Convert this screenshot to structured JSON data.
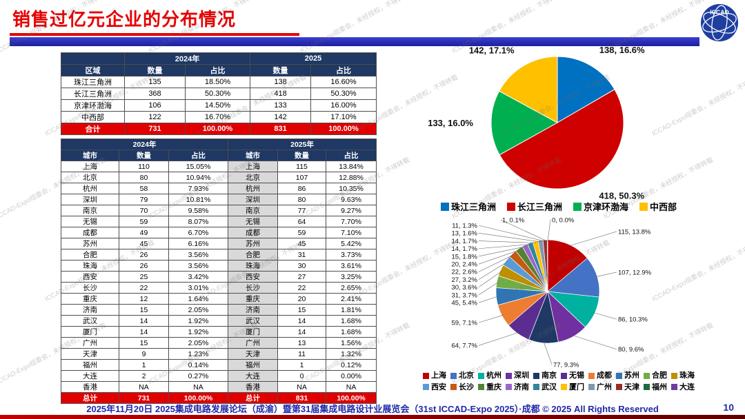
{
  "slide": {
    "title": "销售过亿元企业的分布情况",
    "footer": "2025年11月20日 2025集成电路发展论坛（成渝）暨第31届集成电路设计业展览会（31st ICCAD-Expo 2025）·成都 © 2025 All Rights Reserved",
    "page_number": "10",
    "watermark": "ICCAD-Expo组委会，未经授权，不得转载",
    "logo": "ICCAD",
    "accent_red": "#E60000",
    "accent_blue": "#2029A8"
  },
  "region_table": {
    "year_headers": [
      "2024年",
      "2025"
    ],
    "row_header": "区域",
    "sub_headers": [
      "数量",
      "占比",
      "数量",
      "占比"
    ],
    "rows": [
      [
        "珠江三角洲",
        "135",
        "18.50%",
        "138",
        "16.60%"
      ],
      [
        "长江三角洲",
        "368",
        "50.30%",
        "418",
        "50.30%"
      ],
      [
        "京津环渤海",
        "106",
        "14.50%",
        "133",
        "16.00%"
      ],
      [
        "中西部",
        "122",
        "16.70%",
        "142",
        "17.10%"
      ]
    ],
    "total_row": [
      "合计",
      "731",
      "100.00%",
      "831",
      "100.00%"
    ]
  },
  "city_table": {
    "year_headers": [
      "2024年",
      "2025年"
    ],
    "sub_headers": [
      "城市",
      "数量",
      "占比",
      "城市",
      "数量",
      "占比"
    ],
    "rows": [
      [
        "上海",
        "110",
        "15.05%",
        "上海",
        "115",
        "13.84%"
      ],
      [
        "北京",
        "80",
        "10.94%",
        "北京",
        "107",
        "12.88%"
      ],
      [
        "杭州",
        "58",
        "7.93%",
        "杭州",
        "86",
        "10.35%"
      ],
      [
        "深圳",
        "79",
        "10.81%",
        "深圳",
        "80",
        "9.63%"
      ],
      [
        "南京",
        "70",
        "9.58%",
        "南京",
        "77",
        "9.27%"
      ],
      [
        "无锡",
        "59",
        "8.07%",
        "无锡",
        "64",
        "7.70%"
      ],
      [
        "成都",
        "49",
        "6.70%",
        "成都",
        "59",
        "7.10%"
      ],
      [
        "苏州",
        "45",
        "6.16%",
        "苏州",
        "45",
        "5.42%"
      ],
      [
        "合肥",
        "26",
        "3.56%",
        "合肥",
        "31",
        "3.73%"
      ],
      [
        "珠海",
        "26",
        "3.56%",
        "珠海",
        "30",
        "3.61%"
      ],
      [
        "西安",
        "25",
        "3.42%",
        "西安",
        "27",
        "3.25%"
      ],
      [
        "长沙",
        "22",
        "3.01%",
        "长沙",
        "22",
        "2.65%"
      ],
      [
        "重庆",
        "12",
        "1.64%",
        "重庆",
        "20",
        "2.41%"
      ],
      [
        "济南",
        "15",
        "2.05%",
        "济南",
        "15",
        "1.81%"
      ],
      [
        "武汉",
        "14",
        "1.92%",
        "武汉",
        "14",
        "1.68%"
      ],
      [
        "厦门",
        "14",
        "1.92%",
        "厦门",
        "14",
        "1.68%"
      ],
      [
        "广州",
        "15",
        "2.05%",
        "广州",
        "13",
        "1.56%"
      ],
      [
        "天津",
        "9",
        "1.23%",
        "天津",
        "11",
        "1.32%"
      ],
      [
        "福州",
        "1",
        "0.14%",
        "福州",
        "1",
        "0.12%"
      ],
      [
        "大连",
        "2",
        "0.27%",
        "大连",
        "0",
        "0.00%"
      ],
      [
        "香港",
        "NA",
        "NA",
        "香港",
        "NA",
        "NA"
      ]
    ],
    "total_row": [
      "总计",
      "731",
      "100.00%",
      "总计",
      "831",
      "100.00%"
    ]
  },
  "chart_data": [
    {
      "type": "pie",
      "name": "regions-2025",
      "title": "",
      "categories": [
        "珠江三角洲",
        "长江三角洲",
        "京津环渤海",
        "中西部"
      ],
      "values": [
        138,
        418,
        133,
        142
      ],
      "percent": [
        16.6,
        50.3,
        16.0,
        17.1
      ],
      "labels": [
        "138, 16.6%",
        "418, 50.3%",
        "133, 16.0%",
        "142, 17.1%"
      ],
      "colors": [
        "#0070C0",
        "#CE0000",
        "#00B050",
        "#FFC000"
      ],
      "legend_position": "bottom",
      "start_angle_deg": 0,
      "direction": "clockwise"
    },
    {
      "type": "pie",
      "name": "cities-2025",
      "title": "",
      "categories": [
        "上海",
        "北京",
        "杭州",
        "深圳",
        "南京",
        "无锡",
        "成都",
        "苏州",
        "合肥",
        "珠海",
        "西安",
        "长沙",
        "重庆",
        "济南",
        "武汉",
        "厦门",
        "广州",
        "天津",
        "福州",
        "大连"
      ],
      "values": [
        115,
        107,
        86,
        80,
        77,
        64,
        59,
        45,
        31,
        30,
        27,
        22,
        20,
        15,
        14,
        14,
        13,
        11,
        1,
        0
      ],
      "percent": [
        13.8,
        12.9,
        10.3,
        9.6,
        9.3,
        7.7,
        7.1,
        5.4,
        3.7,
        3.6,
        3.2,
        2.6,
        2.4,
        1.8,
        1.7,
        1.7,
        1.6,
        1.3,
        0.1,
        0.0
      ],
      "labels": [
        "115, 13.8%",
        "107, 12.9%",
        "86, 10.3%",
        "80, 9.6%",
        "77, 9.3%",
        "64, 7.7%",
        "59, 7.1%",
        "45, 5.4%",
        "31, 3.7%",
        "30, 3.6%",
        "27, 3.2%",
        "22, 2.6%",
        "20, 2.4%",
        "15, 1.8%",
        "14, 1.7%",
        "14, 1.7%",
        "13, 1.6%",
        "11, 1.3%",
        "1, 0.1%",
        "0, 0.0%"
      ],
      "colors": [
        "#C00000",
        "#4472C4",
        "#00B0A0",
        "#7030A0",
        "#1F3864",
        "#5C2D91",
        "#ED7D31",
        "#2E75B6",
        "#70AD47",
        "#BF8F00",
        "#5B9BD5",
        "#C55A11",
        "#548235",
        "#9966CC",
        "#31859C",
        "#FFC000",
        "#8496B0",
        "#952E2E",
        "#1E6B3C",
        "#6A3FA0"
      ],
      "legend_position": "bottom",
      "legend_rows": [
        10,
        10
      ],
      "start_angle_deg": 0,
      "direction": "clockwise"
    }
  ]
}
